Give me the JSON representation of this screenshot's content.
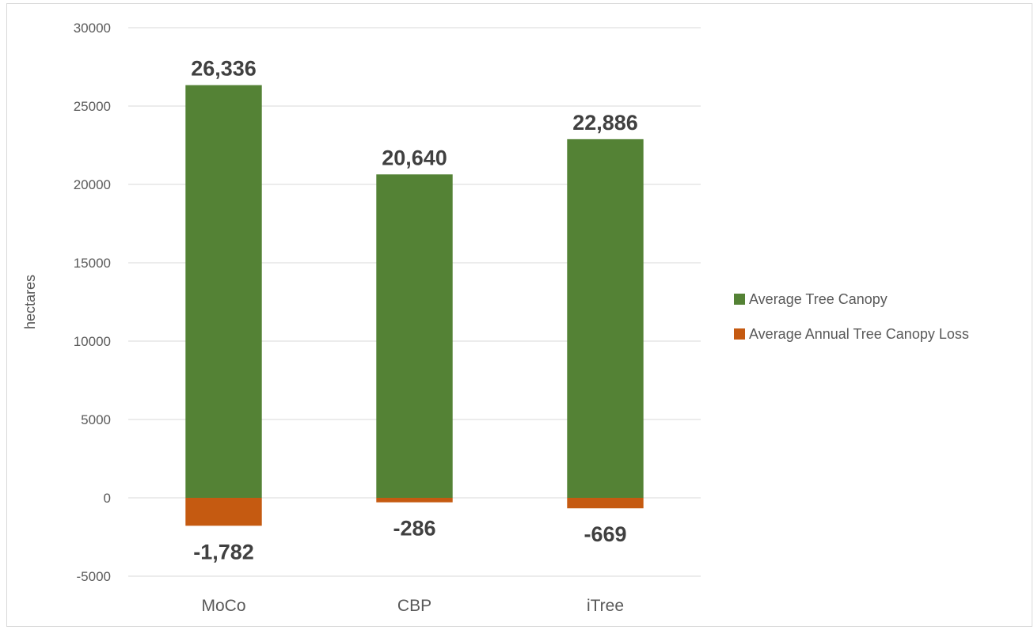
{
  "chart_data": {
    "type": "bar",
    "stacked": true,
    "categories": [
      "MoCo",
      "CBP",
      "iTree"
    ],
    "series": [
      {
        "name": "Average Tree Canopy",
        "values": [
          26336,
          20640,
          22886
        ],
        "labels": [
          "26,336",
          "20,640",
          "22,886"
        ],
        "color": "#548235"
      },
      {
        "name": "Average Annual Tree Canopy Loss",
        "values": [
          -1782,
          -286,
          -669
        ],
        "labels": [
          "-1,782",
          "-286",
          "-669"
        ],
        "color": "#c55a11"
      }
    ],
    "title": "",
    "xlabel": "",
    "ylabel": "hectares",
    "ylim": [
      -5000,
      30000
    ],
    "yticks": [
      -5000,
      0,
      5000,
      10000,
      15000,
      20000,
      25000,
      30000
    ],
    "grid": true,
    "legend_position": "right"
  }
}
